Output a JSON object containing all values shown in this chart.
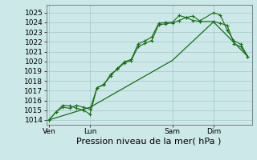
{
  "background_color": "#cce8e8",
  "plot_bg_color": "#cce8e8",
  "grid_color": "#aacccc",
  "line_color": "#1a6b1a",
  "ylim": [
    1013.5,
    1025.8
  ],
  "yticks": [
    1014,
    1015,
    1016,
    1017,
    1018,
    1019,
    1020,
    1021,
    1022,
    1023,
    1024,
    1025
  ],
  "xlabel": "Pression niveau de la mer( hPa )",
  "xlabel_fontsize": 8,
  "tick_fontsize": 6.5,
  "xtick_labels": [
    "Ven",
    "Lun",
    "Sam",
    "Dim"
  ],
  "xtick_positions": [
    0,
    3,
    9,
    12
  ],
  "xlim": [
    -0.2,
    14.8
  ],
  "line1_x": [
    0,
    0.5,
    1,
    1.5,
    2,
    2.5,
    3,
    3.5,
    4,
    4.5,
    5,
    5.5,
    6,
    6.5,
    7,
    7.5,
    8,
    8.5,
    9,
    9.5,
    10,
    10.5,
    11,
    12,
    12.5,
    13,
    13.5,
    14,
    14.5
  ],
  "line1_y": [
    1014.0,
    1014.8,
    1015.3,
    1015.2,
    1015.5,
    1015.3,
    1015.1,
    1017.3,
    1017.6,
    1018.7,
    1019.2,
    1019.85,
    1020.1,
    1021.5,
    1021.85,
    1022.15,
    1023.75,
    1023.85,
    1023.95,
    1024.2,
    1024.5,
    1024.65,
    1024.15,
    1025.0,
    1024.75,
    1023.2,
    1022.1,
    1021.75,
    1020.5
  ],
  "line2_x": [
    0,
    0.5,
    1,
    1.5,
    2,
    2.5,
    3,
    3.5,
    4,
    4.5,
    5,
    5.5,
    6,
    6.5,
    7,
    7.5,
    8,
    8.5,
    9,
    9.5,
    10,
    10.5,
    11,
    12,
    12.5,
    13,
    13.5,
    14,
    14.5
  ],
  "line2_y": [
    1014.0,
    1014.8,
    1015.5,
    1015.45,
    1015.2,
    1015.0,
    1014.6,
    1017.3,
    1017.65,
    1018.5,
    1019.3,
    1019.95,
    1020.2,
    1021.8,
    1022.1,
    1022.5,
    1023.9,
    1024.0,
    1024.0,
    1024.7,
    1024.5,
    1024.2,
    1024.1,
    1024.1,
    1023.9,
    1023.7,
    1021.8,
    1021.5,
    1020.5
  ],
  "line3_x": [
    0,
    3,
    9,
    12,
    14.5
  ],
  "line3_y": [
    1014.0,
    1015.3,
    1020.1,
    1024.05,
    1020.5
  ],
  "vlines_x": [
    0,
    3,
    9,
    12
  ]
}
